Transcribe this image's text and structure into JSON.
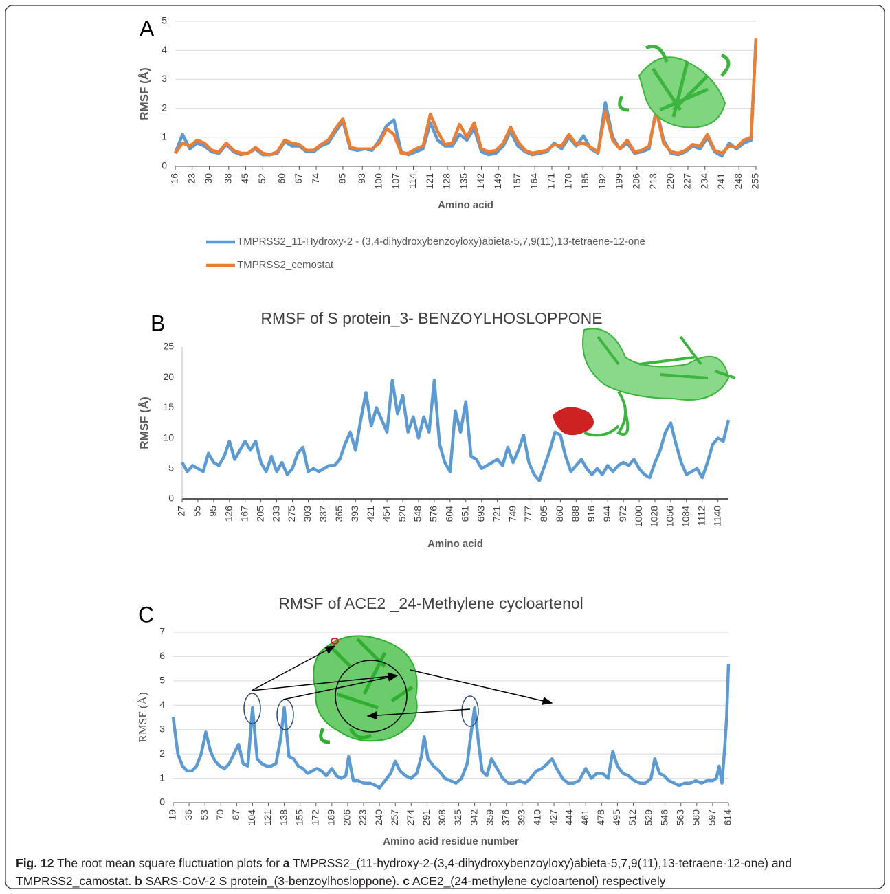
{
  "chart_data": [
    {
      "type": "line",
      "panel": "A",
      "x_label": "Amino acid",
      "y_label": "RMSF (Å)",
      "x": [
        16,
        19,
        22,
        25,
        28,
        31,
        34,
        37,
        40,
        43,
        46,
        49,
        52,
        55,
        58,
        61,
        64,
        67,
        70,
        73,
        76,
        79,
        82,
        85,
        88,
        91,
        94,
        97,
        100,
        103,
        106,
        109,
        112,
        115,
        118,
        121,
        124,
        127,
        130,
        133,
        136,
        139,
        142,
        145,
        148,
        151,
        154,
        157,
        160,
        163,
        166,
        169,
        172,
        175,
        178,
        181,
        184,
        187,
        190,
        193,
        196,
        199,
        202,
        205,
        208,
        211,
        214,
        217,
        220,
        223,
        226,
        229,
        232,
        235,
        238,
        241,
        244,
        247,
        250,
        253,
        255
      ],
      "series": [
        {
          "name": "TMPRSS2_11-Hydroxy-2 - (3,4-dihydroxybenzoyloxy)abieta-5,7,9(11),13-tetraene-12-one",
          "color": "#5b9bd5",
          "values": [
            0.45,
            1.1,
            0.6,
            0.8,
            0.7,
            0.5,
            0.45,
            0.75,
            0.5,
            0.4,
            0.45,
            0.6,
            0.4,
            0.4,
            0.45,
            0.85,
            0.7,
            0.7,
            0.5,
            0.5,
            0.7,
            0.8,
            1.2,
            1.55,
            0.6,
            0.55,
            0.6,
            0.55,
            0.9,
            1.4,
            1.6,
            0.5,
            0.4,
            0.5,
            0.6,
            1.5,
            0.9,
            0.7,
            0.7,
            1.1,
            0.9,
            1.3,
            0.5,
            0.4,
            0.45,
            0.7,
            1.2,
            0.7,
            0.5,
            0.4,
            0.45,
            0.5,
            0.8,
            0.6,
            1.0,
            0.7,
            1.05,
            0.6,
            0.45,
            2.2,
            1.0,
            0.6,
            0.8,
            0.45,
            0.5,
            0.6,
            2.0,
            0.9,
            0.45,
            0.4,
            0.5,
            0.7,
            0.6,
            1.0,
            0.5,
            0.35,
            0.8,
            0.6,
            0.8,
            0.9,
            4.4
          ]
        },
        {
          "name": "TMPRSS2_cemostat",
          "color": "#ed7d31",
          "values": [
            0.45,
            0.8,
            0.7,
            0.9,
            0.8,
            0.55,
            0.5,
            0.8,
            0.55,
            0.45,
            0.45,
            0.65,
            0.45,
            0.4,
            0.5,
            0.9,
            0.8,
            0.75,
            0.55,
            0.55,
            0.75,
            0.9,
            1.3,
            1.65,
            0.65,
            0.6,
            0.6,
            0.6,
            0.8,
            1.3,
            1.1,
            0.45,
            0.45,
            0.6,
            0.7,
            1.8,
            1.2,
            0.75,
            0.8,
            1.45,
            1.0,
            1.5,
            0.6,
            0.5,
            0.55,
            0.8,
            1.35,
            0.85,
            0.55,
            0.45,
            0.5,
            0.55,
            0.75,
            0.7,
            1.1,
            0.75,
            0.8,
            0.65,
            0.5,
            1.9,
            0.9,
            0.6,
            0.9,
            0.5,
            0.55,
            0.7,
            1.9,
            0.8,
            0.5,
            0.45,
            0.55,
            0.75,
            0.7,
            1.1,
            0.55,
            0.45,
            0.7,
            0.65,
            0.9,
            1.0,
            4.4
          ]
        }
      ],
      "xlim": [
        16,
        255
      ],
      "xticks": [
        16,
        23,
        30,
        38,
        45,
        52,
        60,
        67,
        74,
        85,
        93,
        100,
        107,
        114,
        121,
        128,
        135,
        142,
        149,
        157,
        164,
        171,
        178,
        185,
        192,
        199,
        206,
        213,
        220,
        227,
        234,
        241,
        248,
        255
      ],
      "ylim": [
        0,
        5
      ],
      "yticks": [
        0,
        1,
        2,
        3,
        4,
        5
      ],
      "grid": true
    },
    {
      "type": "line",
      "panel": "B",
      "title": "RMSF of S protein_3- BENZOYLHOSLOPPONE",
      "x_label": "Amino acid",
      "y_label": "RMSF (Å)",
      "color": "#5b9bd5",
      "categories": [
        "27",
        null,
        null,
        "55",
        null,
        null,
        "95",
        null,
        null,
        "126",
        null,
        null,
        "167",
        null,
        null,
        "205",
        null,
        null,
        "233",
        null,
        null,
        "275",
        null,
        null,
        "303",
        null,
        null,
        "337",
        null,
        null,
        "365",
        null,
        null,
        "393",
        null,
        null,
        "421",
        null,
        null,
        "454",
        null,
        null,
        "520",
        null,
        null,
        "548",
        null,
        null,
        "576",
        null,
        null,
        "604",
        null,
        null,
        "651",
        null,
        null,
        "693",
        null,
        null,
        "721",
        null,
        null,
        "749",
        null,
        null,
        "777",
        null,
        null,
        "805",
        null,
        null,
        "860",
        null,
        null,
        "888",
        null,
        null,
        "916",
        null,
        null,
        "944",
        null,
        null,
        "972",
        null,
        null,
        "1000",
        null,
        null,
        "1028",
        null,
        null,
        "1056",
        null,
        null,
        "1084",
        null,
        null,
        "1112",
        null,
        null,
        "1140",
        null,
        null
      ],
      "values": [
        6,
        4.5,
        5.5,
        5,
        4.5,
        7.5,
        6,
        5.5,
        7,
        9.5,
        6.5,
        8,
        9.5,
        8,
        9.5,
        6,
        4.5,
        7,
        4.5,
        6,
        4,
        5,
        7.5,
        8.5,
        4.5,
        5,
        4.5,
        5,
        5.5,
        5.5,
        6.5,
        9,
        11,
        8,
        13,
        17.5,
        12,
        15,
        13,
        11,
        19.5,
        14,
        17,
        11,
        13.5,
        10,
        13.5,
        11,
        19.5,
        9,
        6,
        4.5,
        14.5,
        11,
        16,
        7,
        6.5,
        5,
        5.5,
        6,
        6.5,
        5.5,
        8.5,
        6,
        8,
        10.5,
        6,
        4,
        3,
        5.5,
        8,
        11,
        10.5,
        7,
        4.5,
        5.5,
        6.5,
        5,
        4,
        5,
        4,
        5.5,
        4.5,
        5.5,
        6,
        5.5,
        6.5,
        5,
        4,
        3.5,
        6,
        8,
        11,
        12.5,
        9,
        6,
        4,
        4.5,
        5,
        3.5,
        6,
        9,
        10,
        9.5,
        13
      ],
      "ylim": [
        0,
        25
      ],
      "yticks": [
        0,
        5,
        10,
        15,
        20,
        25
      ],
      "grid": false
    },
    {
      "type": "line",
      "panel": "C",
      "title": "RMSF of ACE2 _24-Methylene cycloartenol",
      "x_label": "Amino acid residue number",
      "y_label": "RMSF (Å)",
      "color": "#5b9bd5",
      "x": [
        19,
        24,
        29,
        34,
        39,
        44,
        49,
        54,
        59,
        64,
        69,
        74,
        79,
        84,
        89,
        94,
        99,
        104,
        109,
        114,
        119,
        124,
        129,
        134,
        138,
        143,
        148,
        153,
        158,
        163,
        168,
        173,
        178,
        183,
        189,
        194,
        199,
        204,
        207,
        212,
        217,
        223,
        230,
        236,
        240,
        246,
        252,
        257,
        262,
        268,
        274,
        280,
        285,
        288,
        292,
        298,
        304,
        310,
        316,
        322,
        328,
        334,
        338,
        342,
        346,
        350,
        355,
        360,
        366,
        372,
        378,
        384,
        390,
        396,
        402,
        408,
        414,
        420,
        425,
        430,
        436,
        442,
        448,
        454,
        461,
        467,
        473,
        479,
        485,
        490,
        495,
        501,
        507,
        513,
        519,
        525,
        531,
        535,
        540,
        545,
        550,
        556,
        561,
        567,
        573,
        579,
        585,
        591,
        597,
        601,
        604,
        607,
        610,
        612,
        614
      ],
      "values": [
        3.5,
        2.0,
        1.5,
        1.3,
        1.3,
        1.5,
        2.0,
        2.9,
        2.1,
        1.7,
        1.5,
        1.4,
        1.6,
        2.0,
        2.4,
        1.6,
        1.5,
        3.9,
        1.8,
        1.6,
        1.5,
        1.5,
        1.6,
        2.6,
        3.9,
        1.9,
        1.8,
        1.5,
        1.4,
        1.2,
        1.3,
        1.4,
        1.3,
        1.1,
        1.4,
        1.1,
        1.0,
        1.1,
        1.9,
        0.9,
        0.9,
        0.8,
        0.8,
        0.7,
        0.6,
        0.9,
        1.2,
        1.7,
        1.3,
        1.1,
        1.0,
        1.2,
        1.9,
        2.7,
        1.8,
        1.5,
        1.3,
        1.0,
        0.9,
        0.8,
        1.0,
        1.6,
        2.8,
        3.9,
        2.5,
        1.3,
        1.1,
        1.8,
        1.4,
        1.0,
        0.8,
        0.8,
        0.9,
        0.8,
        1.0,
        1.3,
        1.4,
        1.6,
        1.8,
        1.4,
        1.0,
        0.8,
        0.8,
        0.9,
        1.4,
        1.0,
        1.2,
        1.2,
        1.0,
        2.1,
        1.5,
        1.2,
        1.1,
        0.9,
        0.8,
        0.8,
        1.0,
        1.8,
        1.2,
        1.1,
        0.9,
        0.8,
        0.7,
        0.8,
        0.8,
        0.9,
        0.8,
        0.9,
        0.9,
        1.0,
        1.5,
        0.8,
        2.3,
        3.5,
        5.7
      ],
      "xlim": [
        19,
        614
      ],
      "xticks": [
        19,
        36,
        53,
        70,
        87,
        104,
        121,
        138,
        155,
        172,
        189,
        206,
        223,
        240,
        257,
        274,
        291,
        308,
        325,
        342,
        359,
        376,
        393,
        410,
        427,
        444,
        461,
        478,
        495,
        512,
        529,
        546,
        563,
        580,
        597,
        614
      ],
      "ylim": [
        0,
        7
      ],
      "yticks": [
        0,
        1,
        2,
        3,
        4,
        5,
        6,
        7
      ],
      "grid": true
    }
  ],
  "caption": [
    "Fig. 12",
    " The root mean square fluctuation plots for ",
    "a",
    " TMPRSS2_(11-hydroxy-2-(3,4-dihydroxybenzoyloxy)abieta-5,7,9(11),13-tetraene-12-one) and TMPRSS2_camostat. ",
    "b",
    " SARS-CoV-2 S protein_(3-benzoylhosloppone). ",
    "c",
    " ACE2_(24-methylene cycloartenol) respectively"
  ]
}
